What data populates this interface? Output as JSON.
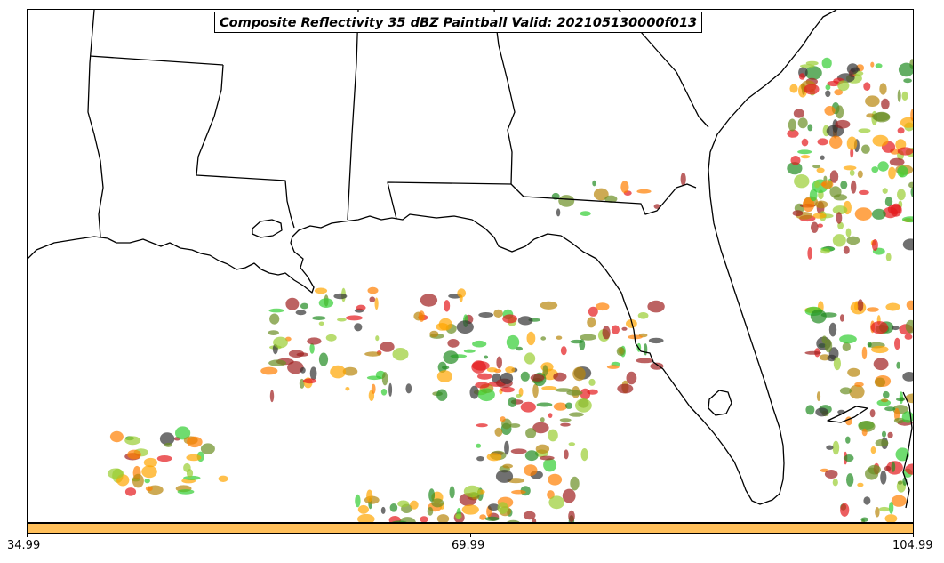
{
  "title": "Composite Reflectivity 35 dBZ Paintball Valid: 202105130000f013",
  "colorbar": {
    "color": "#ffbf5a",
    "tick_labels": [
      "34.99",
      "69.99",
      "104.99"
    ]
  },
  "paintball_colors": [
    "#e41a1c",
    "#228b22",
    "#ff7f00",
    "#32cd32",
    "#9acd32",
    "#a02020",
    "#333333",
    "#ffa500",
    "#b8860b",
    "#6b8e23"
  ]
}
